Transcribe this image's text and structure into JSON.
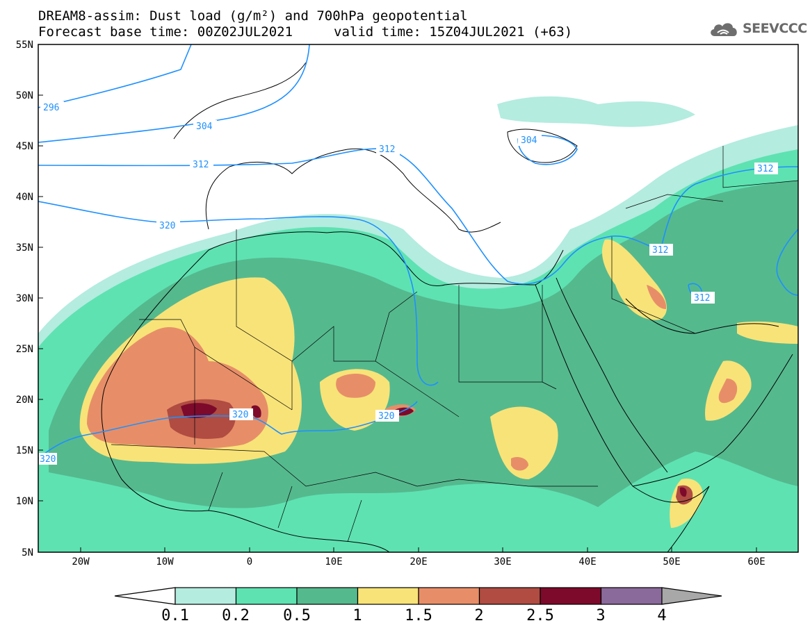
{
  "header": {
    "title": "DREAM8-assim: Dust load (g/m²) and 700hPa geopotential",
    "base_time_label": "Forecast base time: 00Z02JUL2021",
    "valid_time_label": "valid time: 15Z04JUL2021 (+63)"
  },
  "logo": {
    "text": "SEEVCCC",
    "icon": "cloud-icon"
  },
  "map": {
    "lat_labels": [
      "55N",
      "50N",
      "45N",
      "40N",
      "35N",
      "30N",
      "25N",
      "20N",
      "15N",
      "10N",
      "5N"
    ],
    "lon_labels": [
      "20W",
      "10W",
      "0",
      "10E",
      "20E",
      "30E",
      "40E",
      "50E",
      "60E"
    ],
    "contour_labels": [
      "296",
      "304",
      "312",
      "320",
      "304",
      "312",
      "312",
      "312",
      "312",
      "320",
      "320",
      "320"
    ]
  },
  "colorbar": {
    "labels": [
      "0.1",
      "0.2",
      "0.5",
      "1",
      "1.5",
      "2",
      "2.5",
      "3",
      "4"
    ],
    "colors": [
      "#ffffff",
      "#b4ecdf",
      "#5ee2b2",
      "#55b98e",
      "#f8e378",
      "#e78e68",
      "#b04c42",
      "#7d0a2b",
      "#8a6a9a",
      "#a8a8a8"
    ]
  }
}
